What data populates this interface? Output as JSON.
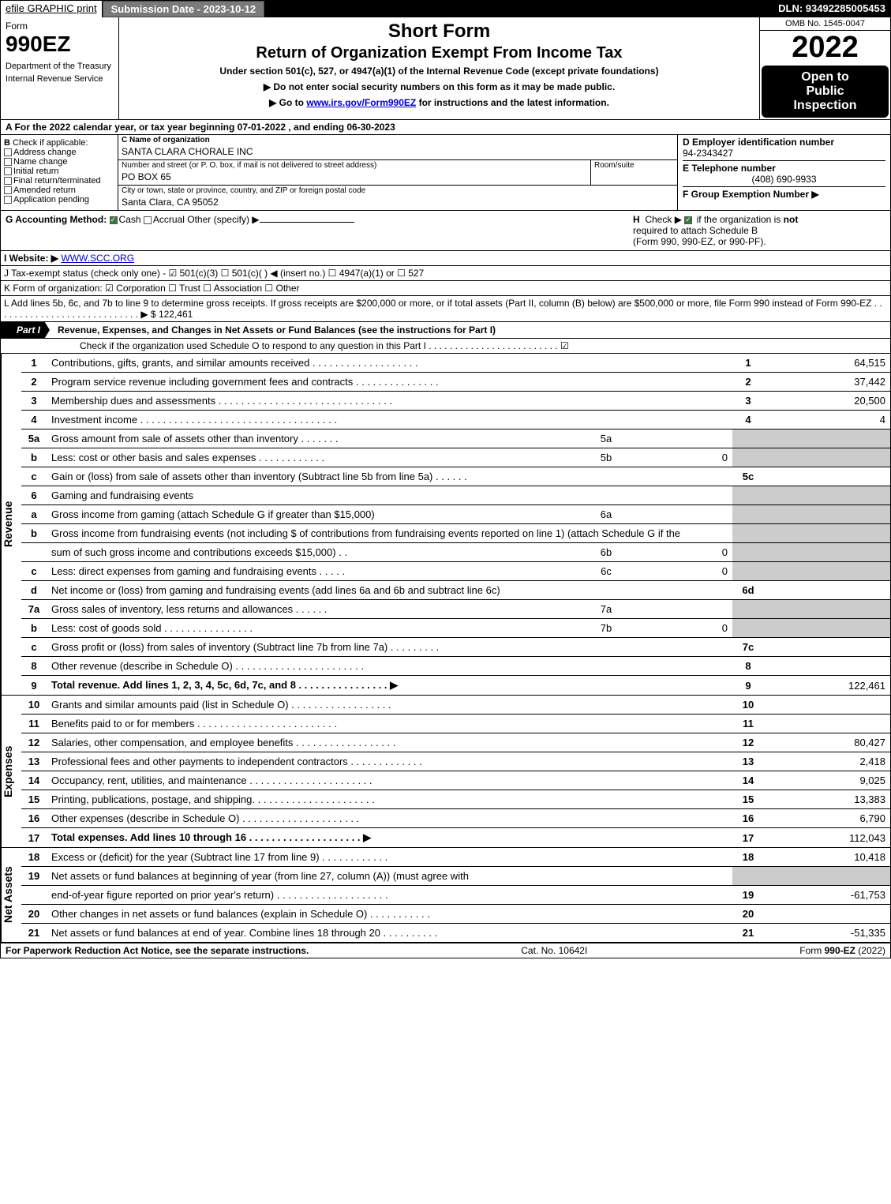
{
  "topbar": {
    "efile": "efile GRAPHIC print",
    "submission": "Submission Date - 2023-10-12",
    "dln": "DLN: 93492285005453"
  },
  "header": {
    "form_word": "Form",
    "form_num": "990EZ",
    "dept1": "Department of the Treasury",
    "dept2": "Internal Revenue Service",
    "title1": "Short Form",
    "title2": "Return of Organization Exempt From Income Tax",
    "subtitle": "Under section 501(c), 527, or 4947(a)(1) of the Internal Revenue Code (except private foundations)",
    "note1": "▶ Do not enter social security numbers on this form as it may be made public.",
    "note2_pre": "▶ Go to ",
    "note2_link": "www.irs.gov/Form990EZ",
    "note2_post": " for instructions and the latest information.",
    "omb": "OMB No. 1545-0047",
    "year": "2022",
    "open1": "Open to",
    "open2": "Public",
    "open3": "Inspection"
  },
  "line_a": "A  For the 2022 calendar year, or tax year beginning 07-01-2022  , and ending 06-30-2023",
  "col_b": {
    "label": "B",
    "check_if": "Check if applicable:",
    "items": [
      "Address change",
      "Name change",
      "Initial return",
      "Final return/terminated",
      "Amended return",
      "Application pending"
    ]
  },
  "col_c": {
    "c_label": "C Name of organization",
    "c_val": "SANTA CLARA CHORALE INC",
    "street_label": "Number and street (or P. O. box, if mail is not delivered to street address)",
    "room_label": "Room/suite",
    "street_val": "PO BOX 65",
    "city_label": "City or town, state or province, country, and ZIP or foreign postal code",
    "city_val": "Santa Clara, CA  95052"
  },
  "col_d": {
    "d_label": "D Employer identification number",
    "d_val": "94-2343427",
    "e_label": "E Telephone number",
    "e_val": "(408) 690-9933",
    "f_label": "F Group Exemption Number  ▶"
  },
  "g": {
    "label": "G Accounting Method:",
    "cash": "Cash",
    "accrual": "Accrual",
    "other": "Other (specify) ▶"
  },
  "h": {
    "label": "H",
    "text1": "Check ▶",
    "text2": "if the organization is ",
    "not": "not",
    "text3": "required to attach Schedule B",
    "text4": "(Form 990, 990-EZ, or 990-PF)."
  },
  "i": {
    "label": "I Website: ▶",
    "val": "WWW.SCC.ORG"
  },
  "j": {
    "text": "J Tax-exempt status (check only one) -  ☑ 501(c)(3)  ☐ 501(c)(  ) ◀ (insert no.)  ☐ 4947(a)(1) or  ☐ 527"
  },
  "k": {
    "text": "K Form of organization:   ☑ Corporation   ☐ Trust   ☐ Association   ☐ Other"
  },
  "l": {
    "text": "L Add lines 5b, 6c, and 7b to line 9 to determine gross receipts. If gross receipts are $200,000 or more, or if total assets (Part II, column (B) below) are $500,000 or more, file Form 990 instead of Form 990-EZ  .   .   .   .   .   .   .   .   .   .   .   .   .   .   .   .   .   .   .   .   .   .   .   .   .   .   .   .   ▶ $",
    "val": "122,461"
  },
  "part1": {
    "tag": "Part I",
    "title": "Revenue, Expenses, and Changes in Net Assets or Fund Balances (see the instructions for Part I)",
    "check_text": "Check if the organization used Schedule O to respond to any question in this Part I  .   .   .   .   .   .   .   .   .   .   .   .   .   .   .   .   .   .   .   .   .   .   .   .   .  ☑"
  },
  "vtabs": {
    "revenue": "Revenue",
    "expenses": "Expenses",
    "net": "Net Assets"
  },
  "lines": [
    {
      "n": "1",
      "desc": "Contributions, gifts, grants, and similar amounts received  .   .   .   .   .   .   .   .   .   .   .   .   .   .   .   .   .   .   .",
      "rn": "1",
      "rv": "64,515"
    },
    {
      "n": "2",
      "desc": "Program service revenue including government fees and contracts  .   .   .   .   .   .   .   .   .   .   .   .   .   .   .",
      "rn": "2",
      "rv": "37,442"
    },
    {
      "n": "3",
      "desc": "Membership dues and assessments  .   .   .   .   .   .   .   .   .   .   .   .   .   .   .   .   .   .   .   .   .   .   .   .   .   .   .   .   .   .   .",
      "rn": "3",
      "rv": "20,500"
    },
    {
      "n": "4",
      "desc": "Investment income  .   .   .   .   .   .   .   .   .   .   .   .   .   .   .   .   .   .   .   .   .   .   .   .   .   .   .   .   .   .   .   .   .   .   .",
      "rn": "4",
      "rv": "4"
    },
    {
      "n": "5a",
      "desc": "Gross amount from sale of assets other than inventory  .   .   .   .   .   .   .",
      "ml": "5a",
      "mv": "",
      "grey": true
    },
    {
      "n": "b",
      "desc": "Less: cost or other basis and sales expenses  .   .   .   .   .   .   .   .   .   .   .   .",
      "ml": "5b",
      "mv": "0",
      "grey": true
    },
    {
      "n": "c",
      "desc": "Gain or (loss) from sale of assets other than inventory (Subtract line 5b from line 5a)  .   .   .   .   .   .",
      "rn": "5c",
      "rv": ""
    },
    {
      "n": "6",
      "desc": "Gaming and fundraising events",
      "grey": true
    },
    {
      "n": "a",
      "desc": "Gross income from gaming (attach Schedule G if greater than $15,000)",
      "ml": "6a",
      "mv": "",
      "grey": true
    },
    {
      "n": "b",
      "desc": "Gross income from fundraising events (not including $                 of contributions from fundraising events reported on line 1) (attach Schedule G if the",
      "grey": true,
      "wrap": true
    },
    {
      "n": "",
      "desc": "sum of such gross income and contributions exceeds $15,000)   .   .",
      "ml": "6b",
      "mv": "0",
      "grey": true
    },
    {
      "n": "c",
      "desc": "Less: direct expenses from gaming and fundraising events   .   .   .   .   .",
      "ml": "6c",
      "mv": "0",
      "grey": true
    },
    {
      "n": "d",
      "desc": "Net income or (loss) from gaming and fundraising events (add lines 6a and 6b and subtract line 6c)",
      "rn": "6d",
      "rv": ""
    },
    {
      "n": "7a",
      "desc": "Gross sales of inventory, less returns and allowances  .   .   .   .   .   .",
      "ml": "7a",
      "mv": "",
      "grey": true
    },
    {
      "n": "b",
      "desc": "Less: cost of goods sold   .   .   .   .   .   .   .   .   .   .   .   .   .   .   .   .",
      "ml": "7b",
      "mv": "0",
      "grey": true
    },
    {
      "n": "c",
      "desc": "Gross profit or (loss) from sales of inventory (Subtract line 7b from line 7a)   .   .   .   .   .   .   .   .   .",
      "rn": "7c",
      "rv": ""
    },
    {
      "n": "8",
      "desc": "Other revenue (describe in Schedule O)  .   .   .   .   .   .   .   .   .   .   .   .   .   .   .   .   .   .   .   .   .   .   .",
      "rn": "8",
      "rv": ""
    },
    {
      "n": "9",
      "desc": "Total revenue. Add lines 1, 2, 3, 4, 5c, 6d, 7c, and 8  .   .   .   .   .   .   .   .   .   .   .   .   .   .   .   .   ▶",
      "rn": "9",
      "rv": "122,461",
      "bold": true
    }
  ],
  "exp_lines": [
    {
      "n": "10",
      "desc": "Grants and similar amounts paid (list in Schedule O)  .   .   .   .   .   .   .   .   .   .   .   .   .   .   .   .   .   .",
      "rn": "10",
      "rv": ""
    },
    {
      "n": "11",
      "desc": "Benefits paid to or for members   .   .   .   .   .   .   .   .   .   .   .   .   .   .   .   .   .   .   .   .   .   .   .   .   .",
      "rn": "11",
      "rv": ""
    },
    {
      "n": "12",
      "desc": "Salaries, other compensation, and employee benefits .   .   .   .   .   .   .   .   .   .   .   .   .   .   .   .   .   .",
      "rn": "12",
      "rv": "80,427"
    },
    {
      "n": "13",
      "desc": "Professional fees and other payments to independent contractors  .   .   .   .   .   .   .   .   .   .   .   .   .",
      "rn": "13",
      "rv": "2,418"
    },
    {
      "n": "14",
      "desc": "Occupancy, rent, utilities, and maintenance .   .   .   .   .   .   .   .   .   .   .   .   .   .   .   .   .   .   .   .   .   .",
      "rn": "14",
      "rv": "9,025"
    },
    {
      "n": "15",
      "desc": "Printing, publications, postage, and shipping.  .   .   .   .   .   .   .   .   .   .   .   .   .   .   .   .   .   .   .   .   .",
      "rn": "15",
      "rv": "13,383"
    },
    {
      "n": "16",
      "desc": "Other expenses (describe in Schedule O)   .   .   .   .   .   .   .   .   .   .   .   .   .   .   .   .   .   .   .   .   .",
      "rn": "16",
      "rv": "6,790"
    },
    {
      "n": "17",
      "desc": "Total expenses. Add lines 10 through 16   .   .   .   .   .   .   .   .   .   .   .   .   .   .   .   .   .   .   .   .   ▶",
      "rn": "17",
      "rv": "112,043",
      "bold": true
    }
  ],
  "net_lines": [
    {
      "n": "18",
      "desc": "Excess or (deficit) for the year (Subtract line 17 from line 9)   .   .   .   .   .   .   .   .   .   .   .   .",
      "rn": "18",
      "rv": "10,418"
    },
    {
      "n": "19",
      "desc": "Net assets or fund balances at beginning of year (from line 27, column (A)) (must agree with",
      "grey": true,
      "wrap": true
    },
    {
      "n": "",
      "desc": "end-of-year figure reported on prior year's return) .   .   .   .   .   .   .   .   .   .   .   .   .   .   .   .   .   .   .   .",
      "rn": "19",
      "rv": "-61,753"
    },
    {
      "n": "20",
      "desc": "Other changes in net assets or fund balances (explain in Schedule O) .   .   .   .   .   .   .   .   .   .   .",
      "rn": "20",
      "rv": ""
    },
    {
      "n": "21",
      "desc": "Net assets or fund balances at end of year. Combine lines 18 through 20 .   .   .   .   .   .   .   .   .   .",
      "rn": "21",
      "rv": "-51,335"
    }
  ],
  "footer": {
    "left": "For Paperwork Reduction Act Notice, see the separate instructions.",
    "mid": "Cat. No. 10642I",
    "right_pre": "Form ",
    "right_bold": "990-EZ",
    "right_post": " (2022)"
  }
}
